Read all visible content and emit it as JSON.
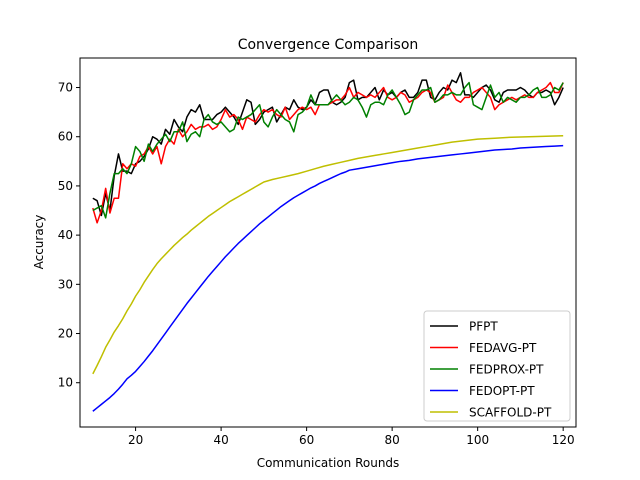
{
  "chart_data": {
    "type": "line",
    "title": "Convergence Comparison",
    "xlabel": "Communication Rounds",
    "ylabel": "Accuracy",
    "xlim": [
      7,
      123
    ],
    "ylim": [
      1,
      76
    ],
    "xticks": [
      20,
      40,
      60,
      80,
      100,
      120
    ],
    "yticks": [
      10,
      20,
      30,
      40,
      50,
      60,
      70
    ],
    "grid": false,
    "legend_position": "lower-right",
    "x": [
      10,
      11,
      12,
      13,
      14,
      15,
      16,
      17,
      18,
      19,
      20,
      21,
      22,
      23,
      24,
      25,
      26,
      27,
      28,
      29,
      30,
      31,
      32,
      33,
      34,
      35,
      36,
      37,
      38,
      39,
      40,
      41,
      42,
      43,
      44,
      45,
      46,
      47,
      48,
      49,
      50,
      51,
      52,
      53,
      54,
      55,
      56,
      57,
      58,
      59,
      60,
      61,
      62,
      63,
      64,
      65,
      66,
      67,
      68,
      69,
      70,
      71,
      72,
      73,
      74,
      75,
      76,
      77,
      78,
      79,
      80,
      81,
      82,
      83,
      84,
      85,
      86,
      87,
      88,
      89,
      90,
      91,
      92,
      93,
      94,
      95,
      96,
      97,
      98,
      99,
      100,
      101,
      102,
      103,
      104,
      105,
      106,
      107,
      108,
      109,
      110,
      111,
      112,
      113,
      114,
      115,
      116,
      117,
      118,
      119,
      120
    ],
    "series": [
      {
        "name": "PFPT",
        "color": "#000000",
        "values": [
          47.5,
          47.0,
          44.0,
          48.5,
          45.0,
          52.0,
          56.5,
          53.0,
          53.0,
          52.5,
          54.5,
          55.0,
          56.0,
          57.5,
          60.0,
          59.5,
          58.5,
          61.5,
          60.5,
          63.5,
          62.0,
          61.0,
          64.0,
          65.5,
          65.0,
          66.5,
          63.5,
          63.5,
          63.5,
          64.5,
          65.0,
          66.0,
          65.0,
          64.0,
          62.5,
          65.0,
          67.5,
          67.0,
          62.5,
          63.5,
          65.0,
          65.5,
          66.0,
          63.0,
          64.5,
          66.0,
          65.5,
          67.5,
          66.0,
          65.5,
          66.0,
          67.5,
          66.5,
          69.0,
          69.5,
          69.5,
          67.0,
          66.5,
          67.0,
          68.0,
          71.0,
          71.5,
          67.5,
          68.0,
          68.0,
          69.0,
          70.0,
          67.5,
          69.5,
          68.5,
          69.0,
          68.0,
          69.0,
          69.5,
          68.0,
          68.0,
          69.0,
          71.5,
          71.5,
          68.0,
          67.5,
          69.0,
          70.0,
          69.5,
          71.5,
          71.0,
          73.0,
          68.5,
          68.5,
          68.0,
          69.0,
          70.0,
          70.5,
          69.5,
          67.5,
          67.0,
          69.0,
          69.5,
          69.5,
          69.5,
          70.0,
          69.5,
          68.5,
          68.0,
          69.0,
          69.0,
          69.5,
          69.0,
          66.5,
          68.0,
          70.0
        ],
        "show_in_legend": true
      },
      {
        "name": "FEDAVG-PT",
        "color": "#ff0000",
        "values": [
          45.5,
          42.5,
          45.0,
          49.5,
          44.5,
          47.5,
          47.5,
          54.5,
          53.5,
          54.5,
          54.0,
          56.0,
          56.5,
          58.0,
          56.5,
          58.0,
          54.5,
          58.0,
          59.5,
          58.5,
          61.5,
          60.0,
          61.0,
          62.5,
          61.5,
          62.0,
          62.0,
          62.5,
          61.5,
          62.0,
          63.5,
          65.5,
          64.0,
          64.5,
          63.5,
          61.5,
          64.0,
          63.5,
          63.0,
          64.5,
          65.5,
          65.0,
          65.5,
          64.5,
          64.0,
          66.0,
          63.5,
          64.5,
          65.5,
          66.0,
          65.5,
          66.0,
          64.5,
          66.5,
          66.5,
          66.5,
          67.0,
          67.5,
          67.5,
          68.5,
          70.0,
          68.0,
          69.0,
          68.5,
          68.0,
          68.5,
          68.0,
          69.0,
          70.0,
          68.0,
          67.5,
          68.0,
          69.0,
          68.5,
          67.0,
          67.5,
          68.0,
          69.0,
          69.5,
          69.0,
          67.0,
          67.5,
          68.0,
          70.5,
          69.0,
          67.5,
          67.0,
          68.0,
          68.0,
          69.0,
          69.5,
          70.0,
          69.0,
          68.0,
          65.5,
          66.5,
          67.0,
          67.5,
          68.0,
          67.5,
          68.0,
          68.5,
          68.0,
          68.0,
          69.0,
          69.5,
          70.0,
          71.0,
          69.0,
          69.0,
          71.0
        ],
        "show_in_legend": true
      },
      {
        "name": "FEDPROX-PT",
        "color": "#008000",
        "values": [
          45.0,
          45.5,
          46.0,
          43.5,
          48.5,
          52.5,
          52.5,
          53.5,
          52.5,
          54.5,
          58.0,
          57.0,
          55.0,
          58.5,
          57.0,
          58.5,
          59.5,
          60.5,
          59.0,
          61.0,
          61.0,
          63.0,
          59.0,
          60.5,
          61.0,
          60.0,
          63.5,
          64.5,
          63.0,
          62.5,
          63.0,
          62.0,
          61.0,
          61.5,
          64.0,
          63.5,
          64.0,
          64.5,
          65.5,
          66.5,
          63.0,
          62.0,
          64.0,
          65.5,
          64.5,
          63.5,
          63.0,
          61.0,
          64.5,
          65.0,
          66.0,
          68.5,
          66.5,
          66.5,
          66.5,
          66.5,
          67.5,
          68.5,
          67.5,
          66.5,
          67.0,
          68.0,
          67.5,
          66.0,
          64.0,
          66.5,
          67.0,
          67.0,
          66.5,
          68.5,
          69.5,
          68.0,
          66.5,
          64.5,
          65.0,
          67.5,
          68.5,
          69.5,
          69.5,
          70.0,
          67.0,
          67.5,
          68.5,
          68.5,
          69.0,
          68.5,
          68.5,
          70.0,
          71.0,
          66.5,
          66.0,
          65.5,
          68.0,
          70.5,
          68.0,
          69.0,
          67.0,
          68.0,
          67.5,
          67.0,
          68.0,
          68.0,
          68.5,
          69.5,
          70.0,
          68.0,
          68.0,
          68.5,
          70.0,
          69.5,
          71.0
        ],
        "show_in_legend": true
      },
      {
        "name": "FEDOPT-PT",
        "color": "#0000ff",
        "values": [
          4.2,
          4.9,
          5.6,
          6.3,
          7.0,
          7.8,
          8.7,
          9.7,
          10.8,
          11.5,
          12.3,
          13.3,
          14.3,
          15.4,
          16.5,
          17.7,
          18.9,
          20.1,
          21.3,
          22.5,
          23.7,
          24.9,
          26.1,
          27.2,
          28.3,
          29.4,
          30.5,
          31.6,
          32.6,
          33.6,
          34.6,
          35.6,
          36.5,
          37.4,
          38.3,
          39.1,
          39.9,
          40.7,
          41.5,
          42.3,
          43.0,
          43.7,
          44.4,
          45.1,
          45.8,
          46.4,
          47.0,
          47.6,
          48.1,
          48.6,
          49.1,
          49.6,
          50.0,
          50.5,
          50.9,
          51.3,
          51.7,
          52.1,
          52.5,
          52.8,
          53.2,
          53.5,
          53.8,
          54.1,
          54.4,
          54.7,
          55.0,
          55.2,
          55.5,
          55.7,
          55.9,
          56.1,
          56.3,
          56.5,
          56.7,
          56.9,
          57.1,
          57.3,
          57.4,
          57.5,
          57.7,
          57.8,
          57.9,
          58.0,
          58.1,
          58.2
        ],
        "x": [
          10,
          11,
          12,
          13,
          14,
          15,
          16,
          17,
          18,
          19,
          20,
          21,
          22,
          23,
          24,
          25,
          26,
          27,
          28,
          29,
          30,
          31,
          32,
          33,
          34,
          35,
          36,
          37,
          38,
          39,
          40,
          41,
          42,
          43,
          44,
          45,
          46,
          47,
          48,
          49,
          50,
          51,
          52,
          53,
          54,
          55,
          56,
          57,
          58,
          59,
          60,
          61,
          62,
          63,
          64,
          65,
          66,
          67,
          68,
          69,
          70,
          72,
          74,
          76,
          78,
          80,
          82,
          84,
          86,
          88,
          90,
          92,
          94,
          96,
          98,
          100,
          102,
          104,
          106,
          108,
          110,
          112,
          114,
          116,
          118,
          120
        ],
        "show_in_legend": true
      },
      {
        "name": "SCAFFOLD-PT",
        "color": "#bfbf00",
        "values": [
          11.8,
          13.5,
          15.3,
          17.2,
          18.7,
          20.3,
          21.6,
          23.0,
          24.6,
          26.0,
          27.6,
          28.9,
          30.4,
          31.7,
          33.0,
          34.2,
          35.2,
          36.1,
          37.0,
          37.9,
          38.7,
          39.5,
          40.2,
          41.0,
          41.7,
          42.4,
          43.1,
          43.8,
          44.4,
          45.0,
          45.6,
          46.2,
          46.8,
          47.3,
          47.8,
          48.3,
          48.8,
          49.3,
          49.8,
          50.3,
          50.8,
          51.3,
          51.7,
          52.1,
          52.5,
          53.0,
          53.5,
          54.0,
          54.4,
          54.8,
          55.2,
          55.6,
          55.9,
          56.2,
          56.5,
          56.8,
          57.1,
          57.4,
          57.7,
          58.0,
          58.3,
          58.6,
          58.9,
          59.1,
          59.3,
          59.5,
          59.7,
          59.9,
          60.0,
          60.1,
          60.2
        ],
        "x": [
          10,
          11,
          12,
          13,
          14,
          15,
          16,
          17,
          18,
          19,
          20,
          21,
          22,
          23,
          24,
          25,
          26,
          27,
          28,
          29,
          30,
          31,
          32,
          33,
          34,
          35,
          36,
          37,
          38,
          39,
          40,
          41,
          42,
          43,
          44,
          45,
          46,
          47,
          48,
          49,
          50,
          52,
          54,
          56,
          58,
          60,
          62,
          64,
          66,
          68,
          70,
          72,
          74,
          76,
          78,
          80,
          82,
          84,
          86,
          88,
          90,
          92,
          94,
          96,
          98,
          100,
          104,
          108,
          112,
          116,
          120
        ],
        "show_in_legend": true
      }
    ]
  }
}
